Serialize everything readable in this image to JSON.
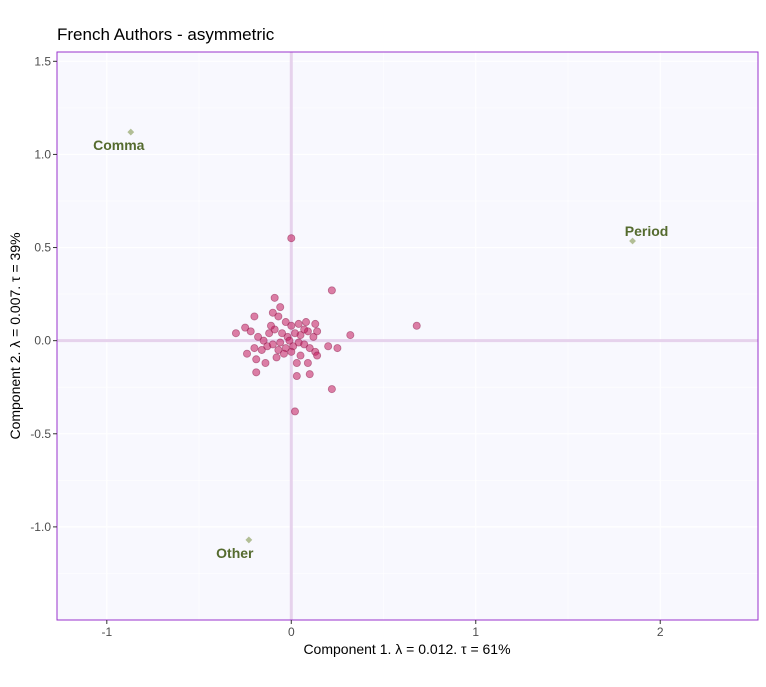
{
  "chart_data": {
    "type": "scatter",
    "title": "French Authors - asymmetric",
    "xlabel": "Component 1.   λ = 0.012.  τ = 61%",
    "ylabel": "Component 2.   λ = 0.007.  τ = 39%",
    "xlim": [
      -1.27,
      2.53
    ],
    "ylim": [
      -1.5,
      1.55
    ],
    "x_ticks": [
      -1,
      0,
      1,
      2
    ],
    "x_tick_labels": [
      "-1",
      "0",
      "1",
      "2"
    ],
    "y_ticks": [
      -1.0,
      -0.5,
      0.0,
      0.5,
      1.0,
      1.5
    ],
    "y_tick_labels": [
      "-1.0",
      "-0.5",
      "0.0",
      "0.5",
      "1.0",
      "1.5"
    ],
    "grid": true,
    "colors": {
      "panel_background": "#f8f8fe",
      "panel_border": "#9932cc",
      "origin_lines": "#e6d2ec",
      "row_points": "#c2185b",
      "column_points": "#b2be96",
      "column_labels": "#556b2f"
    },
    "series": [
      {
        "name": "rows",
        "marker": "circle",
        "points": [
          [
            0.0,
            0.55
          ],
          [
            0.22,
            0.27
          ],
          [
            -0.09,
            0.23
          ],
          [
            0.68,
            0.08
          ],
          [
            0.32,
            0.03
          ],
          [
            -0.3,
            0.04
          ],
          [
            -0.25,
            0.07
          ],
          [
            -0.2,
            0.13
          ],
          [
            -0.1,
            0.15
          ],
          [
            -0.06,
            0.18
          ],
          [
            -0.07,
            0.13
          ],
          [
            -0.03,
            0.1
          ],
          [
            0.0,
            0.08
          ],
          [
            0.04,
            0.09
          ],
          [
            0.08,
            0.1
          ],
          [
            0.13,
            0.09
          ],
          [
            0.14,
            0.05
          ],
          [
            -0.22,
            0.05
          ],
          [
            -0.18,
            0.02
          ],
          [
            -0.15,
            0.0
          ],
          [
            -0.12,
            0.04
          ],
          [
            -0.09,
            0.06
          ],
          [
            -0.05,
            0.04
          ],
          [
            -0.02,
            0.02
          ],
          [
            0.02,
            0.04
          ],
          [
            0.05,
            0.03
          ],
          [
            0.09,
            0.05
          ],
          [
            0.12,
            0.02
          ],
          [
            -0.24,
            -0.07
          ],
          [
            -0.2,
            -0.04
          ],
          [
            -0.16,
            -0.05
          ],
          [
            -0.13,
            -0.03
          ],
          [
            -0.1,
            -0.02
          ],
          [
            -0.07,
            -0.05
          ],
          [
            -0.03,
            -0.04
          ],
          [
            0.01,
            -0.03
          ],
          [
            0.04,
            -0.01
          ],
          [
            0.07,
            -0.02
          ],
          [
            0.1,
            -0.04
          ],
          [
            0.13,
            -0.06
          ],
          [
            0.2,
            -0.03
          ],
          [
            0.25,
            -0.04
          ],
          [
            -0.19,
            -0.1
          ],
          [
            -0.14,
            -0.12
          ],
          [
            -0.08,
            -0.09
          ],
          [
            -0.04,
            -0.07
          ],
          [
            0.03,
            -0.12
          ],
          [
            0.05,
            -0.08
          ],
          [
            0.09,
            -0.12
          ],
          [
            0.14,
            -0.08
          ],
          [
            -0.19,
            -0.17
          ],
          [
            0.03,
            -0.19
          ],
          [
            0.1,
            -0.18
          ],
          [
            0.22,
            -0.26
          ],
          [
            0.02,
            -0.38
          ],
          [
            -0.11,
            0.08
          ],
          [
            -0.06,
            -0.01
          ],
          [
            0.0,
            -0.06
          ],
          [
            0.07,
            0.06
          ],
          [
            -0.01,
            0.0
          ]
        ]
      },
      {
        "name": "columns",
        "marker": "diamond",
        "points": [
          {
            "label": "Comma",
            "x": -0.87,
            "y": 1.12
          },
          {
            "label": "Period",
            "x": 1.85,
            "y": 0.535
          },
          {
            "label": "Other",
            "x": -0.23,
            "y": -1.07
          }
        ]
      }
    ]
  }
}
